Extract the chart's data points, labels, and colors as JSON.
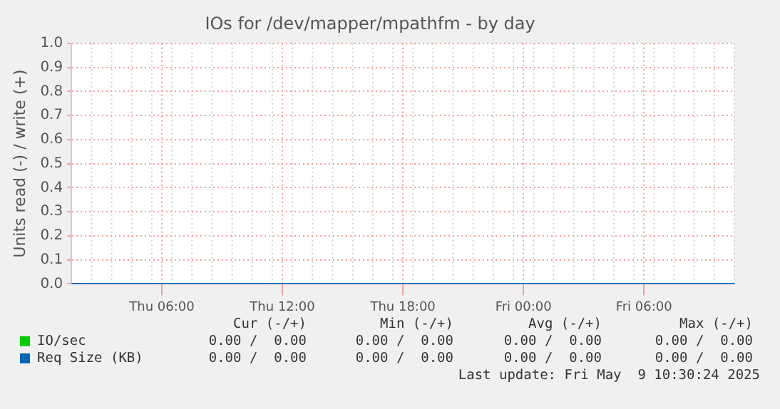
{
  "chart_data": {
    "type": "line",
    "title": "IOs for /dev/mapper/mpathfm - by day",
    "ylabel": "Units read (-) / write (+)",
    "xlim": [
      "2025-05-08T01:30",
      "2025-05-09T10:30"
    ],
    "xticks": [
      {
        "value": "2025-05-08T06:00",
        "label": "Thu 06:00"
      },
      {
        "value": "2025-05-08T12:00",
        "label": "Thu 12:00"
      },
      {
        "value": "2025-05-08T18:00",
        "label": "Thu 18:00"
      },
      {
        "value": "2025-05-09T00:00",
        "label": "Fri 00:00"
      },
      {
        "value": "2025-05-09T06:00",
        "label": "Fri 06:00"
      }
    ],
    "ylim": [
      0,
      1
    ],
    "yticks": [
      {
        "value": 0,
        "label": "0.0"
      },
      {
        "value": 0.1,
        "label": "0.1"
      },
      {
        "value": 0.2,
        "label": "0.2"
      },
      {
        "value": 0.3,
        "label": "0.3"
      },
      {
        "value": 0.4,
        "label": "0.4"
      },
      {
        "value": 0.5,
        "label": "0.5"
      },
      {
        "value": 0.6,
        "label": "0.6"
      },
      {
        "value": 0.7,
        "label": "0.7"
      },
      {
        "value": 0.8,
        "label": "0.8"
      },
      {
        "value": 0.9,
        "label": "0.9"
      },
      {
        "value": 1,
        "label": "1.0"
      }
    ],
    "x": [
      "2025-05-08T01:30",
      "2025-05-09T10:30"
    ],
    "series": [
      {
        "name": "IO/sec",
        "color": "#00cc00",
        "values": [
          null,
          null
        ]
      },
      {
        "name": "Req Size (KB)",
        "color": "#0066b3",
        "values": [
          0,
          0
        ]
      }
    ],
    "grid": true,
    "legend": "bottom",
    "marker": "none",
    "line_style": "solid",
    "annotations": [
      "Cur (-/+)",
      "Min (-/+)",
      "Avg (-/+)",
      "Max (-/+)",
      "0.00 /  0.00",
      "0.00 /  0.00",
      "0.00 /  0.00",
      "0.00 /  0.00",
      "0.00 /  0.00",
      "0.00 /  0.00",
      "0.00 /  0.00",
      "0.00 /  0.00",
      "Last update: Fri May  9 10:30:24 2025"
    ]
  }
}
